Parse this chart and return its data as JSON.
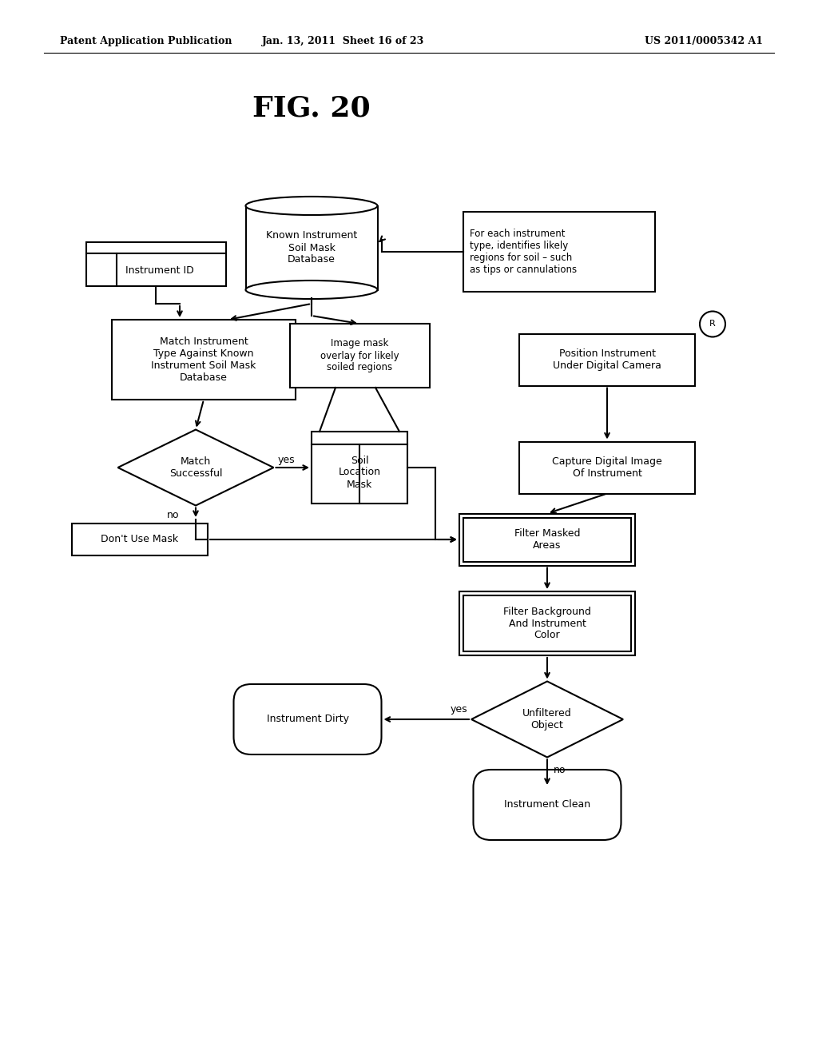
{
  "title": "FIG. 20",
  "header_left": "Patent Application Publication",
  "header_mid": "Jan. 13, 2011  Sheet 16 of 23",
  "header_right": "US 2011/0005342 A1",
  "bg_color": "#ffffff",
  "text_color": "#000000"
}
